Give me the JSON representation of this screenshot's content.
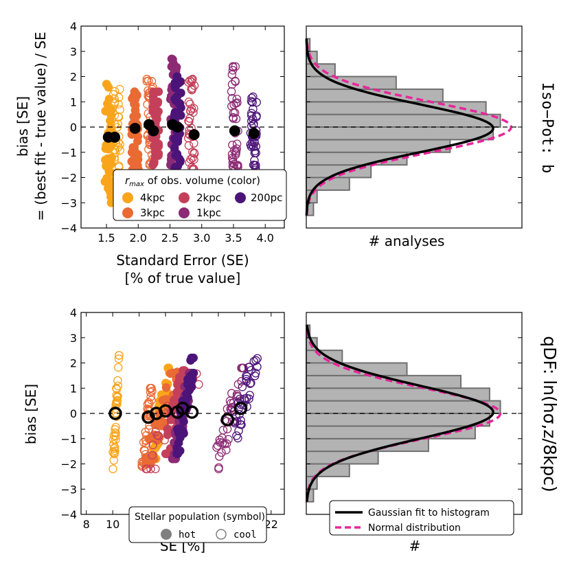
{
  "figure": {
    "top_row_label": "Iso−Pot: b",
    "bottom_row_label": "qDF: ln(hσ,z/8kpc)"
  },
  "colors": {
    "4kpc": "#f9a51c",
    "3kpc": "#ea6a34",
    "2kpc": "#c4405a",
    "1kpc": "#8d2a74",
    "200pc": "#4c1479",
    "hist_fill": "#b3b3b3",
    "hist_edge": "#6f6f6f",
    "gauss_line": "#000000",
    "normal_line": "#e8259a"
  },
  "chart_data": [
    {
      "panel": "top-left",
      "type": "scatter",
      "xlabel_line1": "Standard Error (SE)",
      "xlabel_line2": "[% of true value]",
      "ylabel_line1": "bias [SE]",
      "ylabel_line2": "= (best fit - true value) / SE",
      "xlim": [
        1.1,
        4.3
      ],
      "ylim": [
        -4,
        4
      ],
      "xticks": [
        1.5,
        2.0,
        2.5,
        3.0,
        3.5,
        4.0
      ],
      "xtick_labels": [
        "1.5",
        "2.0",
        "2.5",
        "3.0",
        "3.5",
        "4.0"
      ],
      "yticks": [
        -4,
        -3,
        -2,
        -1,
        0,
        1,
        2,
        3,
        4
      ],
      "ytick_labels": [
        "−4",
        "−3",
        "−2",
        "−1",
        "0",
        "1",
        "2",
        "3",
        "4"
      ],
      "reference_line_y": 0,
      "columns": [
        {
          "x": 1.53,
          "group": "4kpc",
          "pop": "hot",
          "ymin": -3.0,
          "ymax": 1.7
        },
        {
          "x": 1.66,
          "group": "4kpc",
          "pop": "cool",
          "ymin": -2.8,
          "ymax": 1.5
        },
        {
          "x": 1.95,
          "group": "3kpc",
          "pop": "hot",
          "ymin": -1.7,
          "ymax": 1.4
        },
        {
          "x": 2.19,
          "group": "3kpc",
          "pop": "cool",
          "ymin": -1.5,
          "ymax": 1.9
        },
        {
          "x": 2.27,
          "group": "2kpc",
          "pop": "hot",
          "ymin": -1.5,
          "ymax": 1.4
        },
        {
          "x": 2.56,
          "group": "1kpc",
          "pop": "hot",
          "ymin": -1.5,
          "ymax": 2.7
        },
        {
          "x": 2.62,
          "group": "200pc",
          "pop": "hot",
          "ymin": -1.6,
          "ymax": 2.0
        },
        {
          "x": 2.84,
          "group": "2kpc",
          "pop": "cool",
          "ymin": -1.7,
          "ymax": 1.9
        },
        {
          "x": 3.52,
          "group": "1kpc",
          "pop": "cool",
          "ymin": -1.7,
          "ymax": 2.4
        },
        {
          "x": 3.82,
          "group": "200pc",
          "pop": "cool",
          "ymin": -1.7,
          "ymax": 1.2
        }
      ],
      "mean_markers": [
        {
          "x": 1.53,
          "y": -0.4
        },
        {
          "x": 1.63,
          "y": -0.4
        },
        {
          "x": 1.95,
          "y": -0.05
        },
        {
          "x": 2.17,
          "y": 0.1
        },
        {
          "x": 2.24,
          "y": -0.15
        },
        {
          "x": 2.54,
          "y": 0.1
        },
        {
          "x": 2.62,
          "y": 0.0
        },
        {
          "x": 2.88,
          "y": -0.3
        },
        {
          "x": 3.52,
          "y": -0.15
        },
        {
          "x": 3.82,
          "y": -0.25
        }
      ],
      "legend": {
        "title": "r_max of obs. volume (color)",
        "title_sym": "r",
        "title_sub": "max",
        "title_rest": " of obs. volume (color)",
        "entries": [
          {
            "label": "4kpc",
            "key": "4kpc"
          },
          {
            "label": "2kpc",
            "key": "2kpc"
          },
          {
            "label": "200pc",
            "key": "200pc"
          },
          {
            "label": "3kpc",
            "key": "3kpc"
          },
          {
            "label": "1kpc",
            "key": "1kpc"
          }
        ],
        "placement": "lower-center"
      }
    },
    {
      "panel": "top-right",
      "type": "bar",
      "orientation": "horizontal",
      "xlabel": "# analyses",
      "bin_edges": [
        -3.5,
        -3.0,
        -2.5,
        -2.0,
        -1.5,
        -1.0,
        -0.5,
        0.0,
        0.5,
        1.0,
        1.5,
        2.0,
        2.5,
        3.0,
        3.5
      ],
      "counts": [
        2,
        3,
        12,
        18,
        28,
        40,
        52,
        54,
        50,
        38,
        25,
        8,
        3,
        1
      ],
      "ylim": [
        -4,
        4
      ],
      "series": [
        {
          "name": "Gaussian fit to histogram",
          "amplitude": 52,
          "mu": -0.05,
          "sigma": 0.95
        },
        {
          "name": "Normal distribution",
          "amplitude": 57,
          "mu": 0.0,
          "sigma": 1.0
        }
      ]
    },
    {
      "panel": "bottom-left",
      "type": "scatter",
      "xlabel": "SE [%]",
      "ylabel": "bias [SE]",
      "xlim": [
        7.6,
        23.0
      ],
      "ylim": [
        -4,
        4
      ],
      "xticks": [
        8,
        10,
        12,
        14,
        16,
        18,
        20,
        22
      ],
      "xtick_labels": [
        "8",
        "10",
        "12",
        "14",
        "16",
        "18",
        "20",
        "22"
      ],
      "yticks": [
        -4,
        -3,
        -2,
        -1,
        0,
        1,
        2,
        3,
        4
      ],
      "ytick_labels": [
        "−4",
        "−3",
        "−2",
        "−1",
        "0",
        "1",
        "2",
        "3",
        "4"
      ],
      "reference_line_y": 0,
      "clouds": [
        {
          "group": "4kpc",
          "pop": "cool",
          "xlo": 10.0,
          "xhi": 10.5,
          "ymin": -2.2,
          "ymax": 2.3
        },
        {
          "group": "4kpc",
          "pop": "hot",
          "xlo": 13.0,
          "xhi": 14.3,
          "ymin": -1.8,
          "ymax": 1.8
        },
        {
          "group": "3kpc",
          "pop": "hot",
          "xlo": 12.5,
          "xhi": 15.0,
          "ymin": -2.0,
          "ymax": 1.7
        },
        {
          "group": "3kpc",
          "pop": "cool",
          "xlo": 12.2,
          "xhi": 13.0,
          "ymin": -2.1,
          "ymax": 1.0
        },
        {
          "group": "2kpc",
          "pop": "hot",
          "xlo": 14.0,
          "xhi": 15.5,
          "ymin": -1.6,
          "ymax": 1.7
        },
        {
          "group": "2kpc",
          "pop": "cool",
          "xlo": 12.5,
          "xhi": 16.6,
          "ymin": -2.2,
          "ymax": 2.0
        },
        {
          "group": "1kpc",
          "pop": "hot",
          "xlo": 14.5,
          "xhi": 16.0,
          "ymin": -1.8,
          "ymax": 1.6
        },
        {
          "group": "200pc",
          "pop": "hot",
          "xlo": 14.8,
          "xhi": 16.2,
          "ymin": -1.6,
          "ymax": 2.2
        },
        {
          "group": "1kpc",
          "pop": "cool",
          "xlo": 17.8,
          "xhi": 20.0,
          "ymin": -2.2,
          "ymax": 1.8
        },
        {
          "group": "200pc",
          "pop": "cool",
          "xlo": 19.0,
          "xhi": 21.0,
          "ymin": -1.0,
          "ymax": 2.2
        }
      ],
      "mean_markers": [
        {
          "x": 10.2,
          "y": 0.0
        },
        {
          "x": 12.7,
          "y": -0.15
        },
        {
          "x": 13.3,
          "y": 0.0
        },
        {
          "x": 14.0,
          "y": 0.1
        },
        {
          "x": 14.9,
          "y": 0.05
        },
        {
          "x": 15.3,
          "y": 0.2
        },
        {
          "x": 16.0,
          "y": 0.05
        },
        {
          "x": 18.7,
          "y": -0.25
        },
        {
          "x": 19.7,
          "y": 0.2
        }
      ],
      "legend": {
        "title": "Stellar population (symbol)",
        "entries": [
          {
            "label": "hot",
            "pop": "hot"
          },
          {
            "label": "cool",
            "pop": "cool"
          }
        ],
        "placement": "lower-center"
      }
    },
    {
      "panel": "bottom-right",
      "type": "bar",
      "orientation": "horizontal",
      "xlabel": "#",
      "bin_edges": [
        -3.5,
        -3.0,
        -2.5,
        -2.0,
        -1.5,
        -1.0,
        -0.5,
        0.0,
        0.5,
        1.0,
        1.5,
        2.0,
        2.5,
        3.0,
        3.5
      ],
      "counts": [
        2,
        3,
        12,
        20,
        34,
        47,
        51,
        54,
        51,
        43,
        28,
        10,
        3,
        1
      ],
      "ylim": [
        -4,
        4
      ],
      "series": [
        {
          "name": "Gaussian fit to histogram",
          "amplitude": 52,
          "mu": 0.05,
          "sigma": 1.05
        },
        {
          "name": "Normal distribution",
          "amplitude": 54,
          "mu": 0.0,
          "sigma": 1.0
        }
      ],
      "legend": {
        "entries": [
          {
            "label": "Gaussian fit to histogram",
            "style": "solid"
          },
          {
            "label": "Normal distribution",
            "style": "dashed"
          }
        ],
        "placement": "lower-right"
      }
    }
  ]
}
